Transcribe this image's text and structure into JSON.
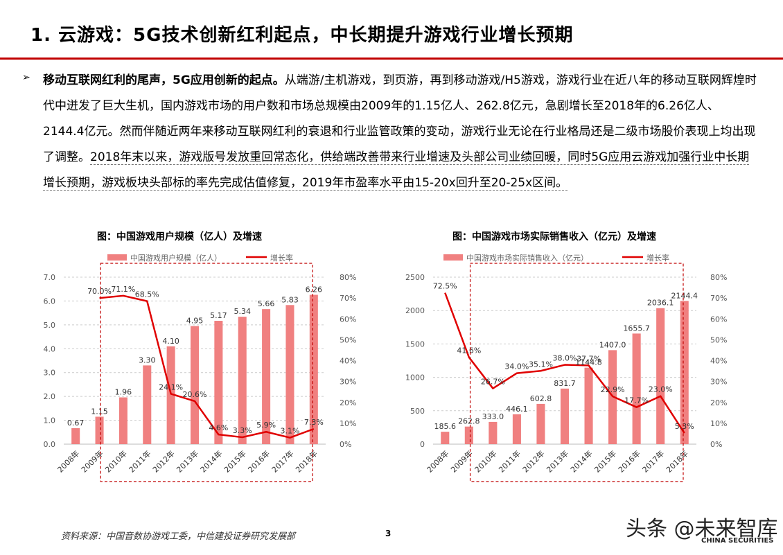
{
  "page": {
    "title": "1. 云游戏：5G技术创新红利起点，中长期提升游戏行业增长预期",
    "paragraph_lead": "移动互联网红利的尾声，5G应用创新的起点。",
    "paragraph_body": "从端游/主机游戏，到页游，再到移动游戏/H5游戏，游戏行业在近八年的移动互联网辉煌时代中迸发了巨大生机，国内游戏市场的用户数和市场总规模由2009年的1.15亿人、262.8亿元，急剧增长至2018年的6.26亿人、2144.4亿元。然而伴随近两年来移动互联网红利的衰退和行业监管政策的变动，游戏行业无论在行业格局还是二级市场股价表现上均出现了调整。",
    "paragraph_tail": "2018年末以来，游戏版号发放重回常态化，供给端改善带来行业增速及头部公司业绩回暖，同时5G应用云游戏加强行业中长期增长预期，游戏板块头部标的率先完成估值修复，2019年市盈率水平由15-20x回升至20-25x区间。",
    "source": "资料来源：中国音数协游戏工委，中信建投证券研究发展部",
    "page_number": "3",
    "watermark": "头条 @未来智库",
    "watermark_brand": "CHINA SECURITIES",
    "bar_color": "#f08080",
    "line_color": "#e00000",
    "accent_color": "#c00000"
  },
  "chart_data": [
    {
      "type": "bar",
      "title": "图：中国游戏用户规模（亿人）及增速",
      "categories": [
        "2008年",
        "2009年",
        "2010年",
        "2011年",
        "2012年",
        "2013年",
        "2014年",
        "2015年",
        "2016年",
        "2017年",
        "2018年"
      ],
      "series": [
        {
          "name": "中国游戏用户规模（亿人）",
          "type": "bar",
          "axis": "left",
          "values": [
            0.67,
            1.15,
            1.96,
            3.3,
            4.1,
            4.95,
            5.17,
            5.34,
            5.66,
            5.83,
            6.26
          ],
          "labels": [
            "0.67",
            "1.15",
            "1.96",
            "3.30",
            "4.10",
            "4.95",
            "5.17",
            "5.34",
            "5.66",
            "5.83",
            "6.26"
          ]
        },
        {
          "name": "增长率",
          "type": "line",
          "axis": "right",
          "values": [
            null,
            70.0,
            71.1,
            68.5,
            24.1,
            20.6,
            4.6,
            3.3,
            5.9,
            3.1,
            7.3
          ],
          "labels": [
            "",
            "70.0%",
            "71.1%",
            "68.5%",
            "24.1%",
            "20.6%",
            "4.6%",
            "3.3%",
            "5.9%",
            "3.1%",
            "7.3%"
          ]
        }
      ],
      "ylim": [
        0,
        7
      ],
      "yticks": [
        "0.0",
        "1.0",
        "2.0",
        "3.0",
        "4.0",
        "5.0",
        "6.0",
        "7.0"
      ],
      "y2lim": [
        0,
        80
      ],
      "y2ticks": [
        "0%",
        "10%",
        "20%",
        "30%",
        "40%",
        "50%",
        "60%",
        "70%",
        "80%"
      ],
      "grid": "horizontal dashed",
      "legend": "top-center"
    },
    {
      "type": "bar",
      "title": "图：中国游戏市场实际销售收入（亿元）及增速",
      "categories": [
        "2008年",
        "2009年",
        "2010年",
        "2011年",
        "2012年",
        "2013年",
        "2014年",
        "2015年",
        "2016年",
        "2017年",
        "2018年"
      ],
      "series": [
        {
          "name": "中国游戏市场实际销售收入（亿元）",
          "type": "bar",
          "axis": "left",
          "values": [
            185.6,
            262.8,
            333.0,
            446.1,
            602.8,
            831.7,
            1144.8,
            1407.0,
            1655.7,
            2036.1,
            2144.4
          ],
          "labels": [
            "185.6",
            "262.8",
            "333.0",
            "446.1",
            "602.8",
            "831.7",
            "1144.8",
            "1407.0",
            "1655.7",
            "2036.1",
            "2144.4"
          ]
        },
        {
          "name": "增长率",
          "type": "line",
          "axis": "right",
          "values": [
            72.5,
            41.6,
            26.7,
            34.0,
            35.1,
            38.0,
            37.7,
            22.9,
            17.7,
            23.0,
            5.3
          ],
          "labels": [
            "72.5%",
            "41.6%",
            "26.7%",
            "34.0%",
            "35.1%",
            "38.0%",
            "37.7%",
            "22.9%",
            "17.7%",
            "23.0%",
            "5.3%"
          ]
        }
      ],
      "ylim": [
        0,
        2500
      ],
      "yticks": [
        "0",
        "500",
        "1000",
        "1500",
        "2000",
        "2500"
      ],
      "y2lim": [
        0,
        80
      ],
      "y2ticks": [
        "0%",
        "10%",
        "20%",
        "30%",
        "40%",
        "50%",
        "60%",
        "70%",
        "80%"
      ],
      "grid": "horizontal dashed",
      "legend": "top-center"
    }
  ]
}
